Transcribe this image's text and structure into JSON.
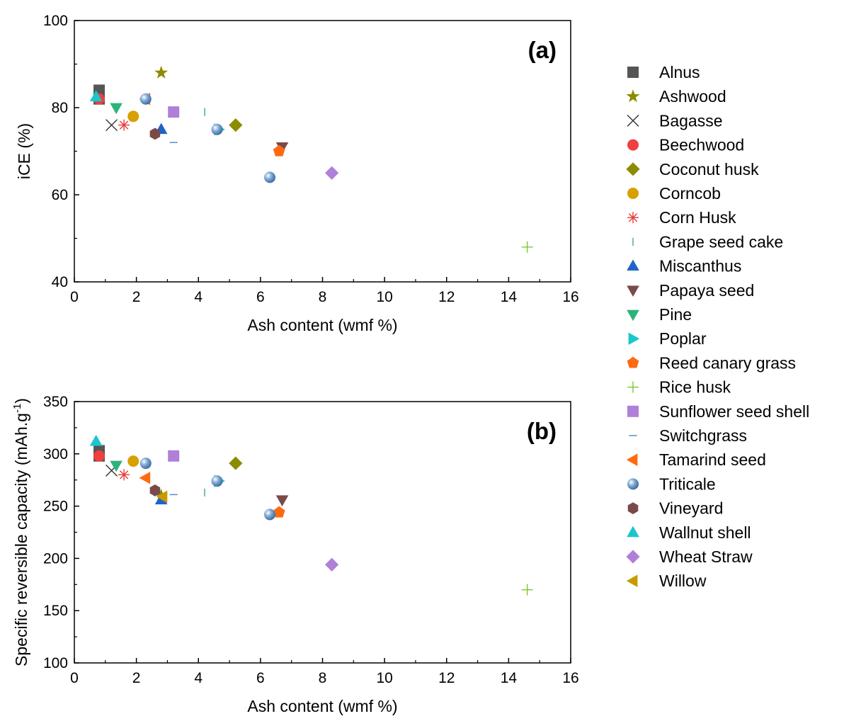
{
  "chart_data": {
    "type": "scatter",
    "series_names": [
      "Alnus",
      "Ashwood",
      "Bagasse",
      "Beechwood",
      "Coconut husk",
      "Corncob",
      "Corn Husk",
      "Grape seed cake",
      "Miscanthus",
      "Papaya seed",
      "Pine",
      "Poplar",
      "Reed canary grass",
      "Rice husk",
      "Sunflower seed shell",
      "Switchgrass",
      "Tamarind seed",
      "Triticale",
      "Vineyard",
      "Wallnut shell",
      "Wheat Straw",
      "Willow"
    ],
    "styles": [
      {
        "marker": "square",
        "color": "#555555"
      },
      {
        "marker": "star",
        "color": "#8C8C00"
      },
      {
        "marker": "x",
        "color": "#333333"
      },
      {
        "marker": "circle",
        "color": "#EF3F3F"
      },
      {
        "marker": "diamond",
        "color": "#8C8C00"
      },
      {
        "marker": "circle",
        "color": "#D8A000"
      },
      {
        "marker": "asterisk",
        "color": "#E83A3A"
      },
      {
        "marker": "vbar",
        "color": "#39B06A"
      },
      {
        "marker": "tri-up",
        "color": "#1E64C8"
      },
      {
        "marker": "tri-down",
        "color": "#7A4A4A"
      },
      {
        "marker": "tri-down",
        "color": "#2DB37A"
      },
      {
        "marker": "tri-right",
        "color": "#19C7CC"
      },
      {
        "marker": "pentagon",
        "color": "#FF6A10"
      },
      {
        "marker": "plus",
        "color": "#7CC832"
      },
      {
        "marker": "square",
        "color": "#B07FD8"
      },
      {
        "marker": "hbar",
        "color": "#4A86D0"
      },
      {
        "marker": "tri-left",
        "color": "#FF6A10"
      },
      {
        "marker": "sphere",
        "color": "#6E9AC8"
      },
      {
        "marker": "hexagon",
        "color": "#7A4A4A"
      },
      {
        "marker": "tri-up",
        "color": "#19C7CC"
      },
      {
        "marker": "diamond",
        "color": "#B07FD8"
      },
      {
        "marker": "tri-left",
        "color": "#C89A00"
      }
    ],
    "panels": [
      {
        "label": "(a)",
        "xlabel": "Ash content (wmf %)",
        "ylabel": "iCE (%)",
        "ylabel_sup": "",
        "ylabel_suffix": "",
        "xlim": [
          0,
          16
        ],
        "ylim": [
          40,
          100
        ],
        "xticks": [
          "0",
          "2",
          "4",
          "6",
          "8",
          "10",
          "12",
          "14",
          "16"
        ],
        "yticks": [
          "40",
          "60",
          "80",
          "100"
        ],
        "points": [
          {
            "series": "Alnus",
            "x": 0.8,
            "y": 84
          },
          {
            "series": "Alnus",
            "x": 0.8,
            "y": 82
          },
          {
            "series": "Ashwood",
            "x": 2.8,
            "y": 88
          },
          {
            "series": "Bagasse",
            "x": 1.2,
            "y": 76
          },
          {
            "series": "Beechwood",
            "x": 0.8,
            "y": 82
          },
          {
            "series": "Coconut husk",
            "x": 5.2,
            "y": 76
          },
          {
            "series": "Corncob",
            "x": 1.9,
            "y": 78
          },
          {
            "series": "Corn Husk",
            "x": 1.6,
            "y": 76
          },
          {
            "series": "Grape seed cake",
            "x": 4.2,
            "y": 79
          },
          {
            "series": "Miscanthus",
            "x": 2.8,
            "y": 75
          },
          {
            "series": "Papaya seed",
            "x": 6.7,
            "y": 71
          },
          {
            "series": "Pine",
            "x": 1.35,
            "y": 80
          },
          {
            "series": "Poplar",
            "x": 4.65,
            "y": 75
          },
          {
            "series": "Reed canary grass",
            "x": 6.6,
            "y": 70
          },
          {
            "series": "Rice husk",
            "x": 14.6,
            "y": 48
          },
          {
            "series": "Sunflower seed shell",
            "x": 3.2,
            "y": 79
          },
          {
            "series": "Switchgrass",
            "x": 3.2,
            "y": 72
          },
          {
            "series": "Tamarind seed",
            "x": 2.3,
            "y": 82
          },
          {
            "series": "Triticale",
            "x": 2.3,
            "y": 82
          },
          {
            "series": "Triticale",
            "x": 4.6,
            "y": 75
          },
          {
            "series": "Triticale",
            "x": 6.3,
            "y": 64
          },
          {
            "series": "Vineyard",
            "x": 2.6,
            "y": 74
          },
          {
            "series": "Wallnut shell",
            "x": 0.7,
            "y": 82.5
          },
          {
            "series": "Wheat Straw",
            "x": 8.3,
            "y": 65
          }
        ]
      },
      {
        "label": "(b)",
        "xlabel": "Ash content (wmf %)",
        "ylabel": "Specific reversible capacity (mAh.g",
        "ylabel_sup": "-1",
        "ylabel_suffix": ")",
        "xlim": [
          0,
          16
        ],
        "ylim": [
          100,
          350
        ],
        "xticks": [
          "0",
          "2",
          "4",
          "6",
          "8",
          "10",
          "12",
          "14",
          "16"
        ],
        "yticks": [
          "100",
          "150",
          "200",
          "250",
          "300",
          "350"
        ],
        "points": [
          {
            "series": "Alnus",
            "x": 0.8,
            "y": 303
          },
          {
            "series": "Alnus",
            "x": 0.8,
            "y": 298
          },
          {
            "series": "Ashwood",
            "x": 2.8,
            "y": 260
          },
          {
            "series": "Bagasse",
            "x": 1.2,
            "y": 284
          },
          {
            "series": "Beechwood",
            "x": 0.8,
            "y": 298
          },
          {
            "series": "Coconut husk",
            "x": 5.2,
            "y": 291
          },
          {
            "series": "Corncob",
            "x": 1.9,
            "y": 293
          },
          {
            "series": "Corn Husk",
            "x": 1.6,
            "y": 280
          },
          {
            "series": "Grape seed cake",
            "x": 4.2,
            "y": 263
          },
          {
            "series": "Miscanthus",
            "x": 2.8,
            "y": 256
          },
          {
            "series": "Papaya seed",
            "x": 6.7,
            "y": 256
          },
          {
            "series": "Pine",
            "x": 1.35,
            "y": 289
          },
          {
            "series": "Poplar",
            "x": 4.65,
            "y": 274
          },
          {
            "series": "Reed canary grass",
            "x": 6.6,
            "y": 244
          },
          {
            "series": "Rice husk",
            "x": 14.6,
            "y": 170
          },
          {
            "series": "Sunflower seed shell",
            "x": 3.2,
            "y": 298
          },
          {
            "series": "Switchgrass",
            "x": 3.2,
            "y": 261
          },
          {
            "series": "Tamarind seed",
            "x": 2.3,
            "y": 277
          },
          {
            "series": "Triticale",
            "x": 2.3,
            "y": 291
          },
          {
            "series": "Triticale",
            "x": 4.6,
            "y": 274
          },
          {
            "series": "Triticale",
            "x": 6.3,
            "y": 242
          },
          {
            "series": "Vineyard",
            "x": 2.6,
            "y": 265
          },
          {
            "series": "Wallnut shell",
            "x": 0.7,
            "y": 312
          },
          {
            "series": "Wheat Straw",
            "x": 8.3,
            "y": 194
          },
          {
            "series": "Willow",
            "x": 2.85,
            "y": 259
          }
        ]
      }
    ]
  }
}
